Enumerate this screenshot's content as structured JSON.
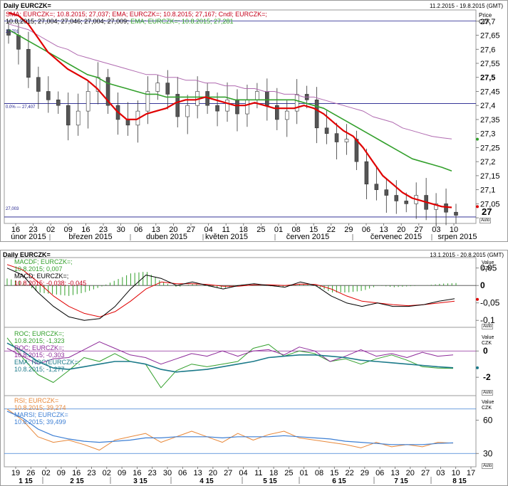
{
  "top_panel": {
    "title": "Daily EURCZK=",
    "date_range": "11.2.2015 - 19.8.2015 (GMT)",
    "legend_line1": "SMA; EURCZK=; 10.8.2015; 27,037; EMA; EURCZK=; 10.8.2015; 27,167; Cndl; EURCZK=;",
    "legend_line2a": "10.8.2015; 27,004; 27,046; 27,004; 27,009;",
    "legend_line2b": "EMA; EURCZK=; 10.8.2015; 27,281",
    "axis_title_1": "Price",
    "axis_title_2": "CZK",
    "hline_labels": [
      "27,701",
      "0.0% — 27,407",
      "27,003"
    ],
    "current_price_label": "27",
    "auto_label": "Auto"
  },
  "bottom_panel": {
    "title": "Daily EURCZK=",
    "date_range": "13.1.2015 - 20.8.2015 (GMT)",
    "auto_label": "Auto",
    "macd": {
      "legend": [
        "MACDF; EURCZK=;",
        "10.8.2015; 0,007",
        "MACD; EURCZK=;",
        "10.8.2015; -0,038; -0,045"
      ],
      "axis_title_1": "Value",
      "axis_title_2": "CZK"
    },
    "roc": {
      "legend": [
        "ROC; EURCZK=;",
        "10.8.2015; -1,323",
        "ROC; EURCZK=;",
        "10.8.2015; -0,303",
        "EMA; ROC(EURCZK=;",
        "10.8.2015; -1,277"
      ],
      "axis_title_1": "Value",
      "axis_title_2": "CZK"
    },
    "rsi": {
      "legend": [
        "RSI; EURCZK=",
        "10.8.2015; 39,274",
        "MARSI; EURCZK=",
        "10.8.2015; 39,499"
      ],
      "axis_title_1": "Value",
      "axis_title_2": "CZK"
    }
  },
  "chart_data": [
    {
      "type": "line",
      "title": "Daily EURCZK=",
      "subtitle": "11.2.2015 - 19.8.2015 (GMT)",
      "ylabel": "Price CZK",
      "ylim": [
        26.98,
        27.74
      ],
      "yticks": [
        "27,7",
        "27,65",
        "27,6",
        "27,55",
        "27,5",
        "27,45",
        "27,4",
        "27,35",
        "27,3",
        "27,25",
        "27,2",
        "27,15",
        "27,1",
        "27,05",
        "27"
      ],
      "x_day_labels": [
        "16",
        "23",
        "02",
        "09",
        "16",
        "23",
        "30",
        "06",
        "13",
        "20",
        "27",
        "04",
        "11",
        "18",
        "25",
        "01",
        "08",
        "15",
        "22",
        "29",
        "06",
        "13",
        "20",
        "27",
        "03",
        "10"
      ],
      "x_month_labels": [
        "únor 2015",
        "březen 2015",
        "duben 2015",
        "květen 2015",
        "červen 2015",
        "červenec 2015",
        "srpen 2015"
      ],
      "horizontal_lines": [
        27.701,
        27.407,
        27.003
      ],
      "colors": {
        "sma": "#e00000",
        "ema_slow": "#33a02c",
        "ema_fast": "#b06ab0",
        "candle_up": "#ffffff",
        "candle_down": "#555555"
      },
      "series": [
        {
          "name": "SMA",
          "values": [
            27.73,
            27.72,
            27.69,
            27.64,
            27.59,
            27.56,
            27.53,
            27.51,
            27.49,
            27.46,
            27.42,
            27.38,
            27.35,
            27.35,
            27.37,
            27.38,
            27.39,
            27.41,
            27.42,
            27.42,
            27.43,
            27.42,
            27.41,
            27.4,
            27.4,
            27.41,
            27.4,
            27.39,
            27.39,
            27.39,
            27.4,
            27.39,
            27.37,
            27.34,
            27.31,
            27.29,
            27.25,
            27.2,
            27.15,
            27.12,
            27.09,
            27.07,
            27.06,
            27.05,
            27.04,
            27.037
          ]
        },
        {
          "name": "EMA",
          "values": [
            27.67,
            27.65,
            27.63,
            27.61,
            27.59,
            27.57,
            27.55,
            27.53,
            27.51,
            27.5,
            27.48,
            27.47,
            27.46,
            27.45,
            27.44,
            27.44,
            27.43,
            27.43,
            27.43,
            27.43,
            27.43,
            27.43,
            27.43,
            27.42,
            27.42,
            27.42,
            27.42,
            27.42,
            27.42,
            27.42,
            27.41,
            27.4,
            27.39,
            27.37,
            27.35,
            27.33,
            27.31,
            27.29,
            27.27,
            27.25,
            27.23,
            27.21,
            27.2,
            27.19,
            27.18,
            27.167
          ]
        },
        {
          "name": "EMA",
          "values": [
            27.69,
            27.68,
            27.67,
            27.65,
            27.63,
            27.61,
            27.6,
            27.58,
            27.57,
            27.56,
            27.55,
            27.54,
            27.53,
            27.52,
            27.51,
            27.51,
            27.5,
            27.5,
            27.49,
            27.49,
            27.48,
            27.48,
            27.47,
            27.47,
            27.46,
            27.46,
            27.45,
            27.45,
            27.44,
            27.44,
            27.43,
            27.43,
            27.42,
            27.41,
            27.4,
            27.39,
            27.38,
            27.36,
            27.35,
            27.34,
            27.32,
            27.31,
            27.3,
            27.29,
            27.285,
            27.281
          ]
        },
        {
          "name": "Cndl",
          "values": [
            27.65,
            27.6,
            27.5,
            27.45,
            27.42,
            27.4,
            27.33,
            27.38,
            27.45,
            27.5,
            27.4,
            27.35,
            27.33,
            27.38,
            27.45,
            27.48,
            27.44,
            27.36,
            27.4,
            27.45,
            27.4,
            27.38,
            27.42,
            27.37,
            27.42,
            27.45,
            27.4,
            27.35,
            27.38,
            27.44,
            27.42,
            27.32,
            27.3,
            27.27,
            27.28,
            27.2,
            27.12,
            27.1,
            27.08,
            27.06,
            27.05,
            27.08,
            27.03,
            27.05,
            27.02,
            27.009
          ]
        }
      ]
    },
    {
      "type": "line",
      "title": "MACD",
      "ylabel": "Value CZK",
      "ylim": [
        -0.12,
        0.08
      ],
      "yticks": [
        "0,05",
        "0",
        "-0,05",
        "-0,1"
      ],
      "x_day_labels": [
        "19",
        "26",
        "02",
        "09",
        "16",
        "23",
        "02",
        "09",
        "16",
        "23",
        "30",
        "06",
        "13",
        "20",
        "27",
        "04",
        "11",
        "18",
        "25",
        "01",
        "08",
        "15",
        "22",
        "29",
        "06",
        "13",
        "20",
        "27",
        "03",
        "10",
        "17"
      ],
      "x_month_labels": [
        "1 15",
        "2 15",
        "3 15",
        "4 15",
        "5 15",
        "6 15",
        "7 15",
        "8 15"
      ],
      "colors": {
        "macd": "#000000",
        "signal": "#e00000",
        "histogram": "#33a02c"
      },
      "series": [
        {
          "name": "MACD",
          "values": [
            0.05,
            0.03,
            -0.02,
            -0.06,
            -0.09,
            -0.1,
            -0.095,
            -0.06,
            -0.01,
            0.03,
            0.02,
            0.0,
            0.01,
            0.0,
            -0.01,
            0.0,
            0.005,
            0.0,
            -0.005,
            0.01,
            0.0,
            -0.03,
            -0.05,
            -0.06,
            -0.05,
            -0.06,
            -0.06,
            -0.055,
            -0.045,
            -0.038
          ]
        },
        {
          "name": "MACD",
          "values": [
            0.06,
            0.045,
            0.01,
            -0.03,
            -0.06,
            -0.08,
            -0.09,
            -0.075,
            -0.045,
            -0.01,
            0.01,
            0.005,
            0.005,
            0.003,
            -0.002,
            -0.002,
            0.002,
            0.002,
            0.0,
            0.004,
            0.003,
            -0.01,
            -0.03,
            -0.045,
            -0.05,
            -0.055,
            -0.058,
            -0.055,
            -0.05,
            -0.045
          ]
        },
        {
          "name": "MACDF",
          "values": [
            0.02,
            0.01,
            -0.02,
            -0.025,
            -0.03,
            -0.02,
            -0.005,
            0.015,
            0.035,
            0.04,
            0.01,
            -0.005,
            0.005,
            -0.003,
            -0.008,
            0.002,
            0.003,
            -0.002,
            -0.005,
            0.006,
            -0.003,
            -0.02,
            -0.02,
            -0.015,
            0.0,
            -0.005,
            -0.002,
            0.0,
            0.005,
            0.007
          ]
        }
      ]
    },
    {
      "type": "line",
      "title": "ROC",
      "ylabel": "Value CZK",
      "ylim": [
        -3.4,
        1.8
      ],
      "yticks": [
        "0",
        "-2"
      ],
      "colors": {
        "roc_fast": "#33a02c",
        "roc_slow": "#8e2a9a",
        "ema": "#1c7a8a"
      },
      "series": [
        {
          "name": "ROC",
          "values": [
            1.0,
            -0.5,
            -1.8,
            -2.4,
            -1.5,
            -0.5,
            -0.8,
            -0.2,
            -0.8,
            -1.0,
            -2.8,
            -1.5,
            -1.0,
            -1.2,
            -1.0,
            -0.8,
            0.2,
            0.5,
            -0.4,
            0.0,
            -0.2,
            -0.8,
            -0.6,
            -1.0,
            -0.6,
            -0.3,
            -0.7,
            -1.2,
            -1.3,
            -1.323
          ]
        },
        {
          "name": "ROC",
          "values": [
            0.2,
            -0.4,
            -1.0,
            -0.6,
            -0.5,
            0.1,
            0.7,
            0.2,
            -0.3,
            -0.5,
            -1.0,
            -0.6,
            -0.2,
            -0.4,
            0.0,
            -0.4,
            0.0,
            0.1,
            -0.3,
            0.3,
            0.0,
            -0.8,
            -0.4,
            0.1,
            -0.4,
            -0.2,
            -0.5,
            -0.1,
            -0.4,
            -0.303
          ]
        },
        {
          "name": "EMA; ROC(EURCZK=",
          "values": [
            0.6,
            0.0,
            -0.8,
            -1.3,
            -1.4,
            -1.2,
            -1.0,
            -0.8,
            -0.8,
            -1.0,
            -1.4,
            -1.6,
            -1.5,
            -1.4,
            -1.2,
            -1.0,
            -0.8,
            -0.5,
            -0.4,
            -0.3,
            -0.3,
            -0.4,
            -0.5,
            -0.7,
            -0.8,
            -0.9,
            -1.0,
            -1.1,
            -1.2,
            -1.277
          ]
        }
      ]
    },
    {
      "type": "line",
      "title": "RSI",
      "ylabel": "Value CZK",
      "ylim": [
        18,
        82
      ],
      "yticks": [
        "60",
        "30"
      ],
      "horizontal_lines": [
        70,
        30
      ],
      "colors": {
        "rsi": "#e8883a",
        "marsi": "#3d7fd4"
      },
      "series": [
        {
          "name": "RSI",
          "values": [
            70,
            60,
            45,
            40,
            42,
            38,
            33,
            42,
            45,
            48,
            40,
            45,
            50,
            45,
            40,
            48,
            42,
            47,
            50,
            44,
            42,
            40,
            38,
            35,
            40,
            36,
            38,
            36,
            40,
            39.274
          ]
        },
        {
          "name": "MARSI",
          "values": [
            68,
            62,
            52,
            46,
            43,
            41,
            40,
            41,
            42,
            44,
            44,
            45,
            45,
            45,
            44,
            45,
            45,
            45,
            46,
            45,
            44,
            43,
            41,
            40,
            39,
            38,
            38,
            38,
            39,
            39.499
          ]
        }
      ]
    }
  ]
}
